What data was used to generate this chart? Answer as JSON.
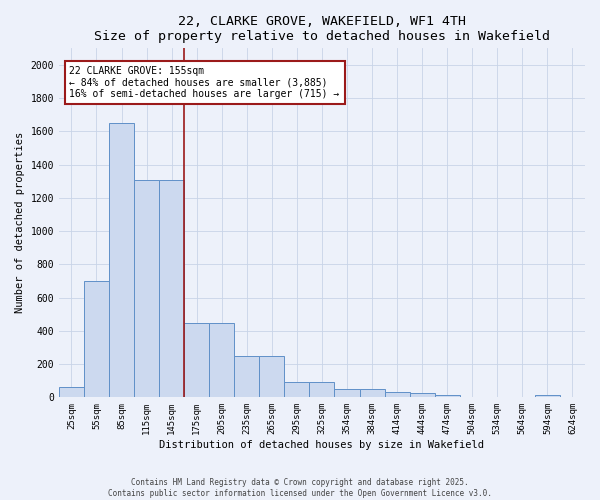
{
  "title": "22, CLARKE GROVE, WAKEFIELD, WF1 4TH",
  "subtitle": "Size of property relative to detached houses in Wakefield",
  "xlabel": "Distribution of detached houses by size in Wakefield",
  "ylabel": "Number of detached properties",
  "categories": [
    "25sqm",
    "55sqm",
    "85sqm",
    "115sqm",
    "145sqm",
    "175sqm",
    "205sqm",
    "235sqm",
    "265sqm",
    "295sqm",
    "325sqm",
    "354sqm",
    "384sqm",
    "414sqm",
    "444sqm",
    "474sqm",
    "504sqm",
    "534sqm",
    "564sqm",
    "594sqm",
    "624sqm"
  ],
  "values": [
    65,
    700,
    1650,
    1310,
    1310,
    450,
    450,
    250,
    250,
    95,
    90,
    50,
    50,
    30,
    25,
    15,
    0,
    0,
    0,
    15,
    0
  ],
  "bar_color": "#ccd9ef",
  "bar_edge_color": "#6090c8",
  "background_color": "#edf1fa",
  "grid_color": "#d8dff0",
  "vline_x": 4.5,
  "vline_color": "#9b1a1a",
  "annotation_text": "22 CLARKE GROVE: 155sqm\n← 84% of detached houses are smaller (3,885)\n16% of semi-detached houses are larger (715) →",
  "annotation_box_color": "#ffffff",
  "annotation_box_edge": "#9b1a1a",
  "ylim": [
    0,
    2100
  ],
  "yticks": [
    0,
    200,
    400,
    600,
    800,
    1000,
    1200,
    1400,
    1600,
    1800,
    2000
  ],
  "footer1": "Contains HM Land Registry data © Crown copyright and database right 2025.",
  "footer2": "Contains public sector information licensed under the Open Government Licence v3.0."
}
